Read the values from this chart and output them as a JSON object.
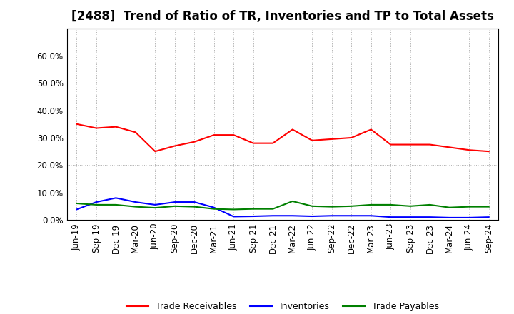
{
  "title": "[2488]  Trend of Ratio of TR, Inventories and TP to Total Assets",
  "x_labels": [
    "Jun-19",
    "Sep-19",
    "Dec-19",
    "Mar-20",
    "Jun-20",
    "Sep-20",
    "Dec-20",
    "Mar-21",
    "Jun-21",
    "Sep-21",
    "Dec-21",
    "Mar-22",
    "Jun-22",
    "Sep-22",
    "Dec-22",
    "Mar-23",
    "Jun-23",
    "Sep-23",
    "Dec-23",
    "Mar-24",
    "Jun-24",
    "Sep-24"
  ],
  "trade_receivables": [
    0.35,
    0.335,
    0.34,
    0.32,
    0.25,
    0.27,
    0.285,
    0.31,
    0.31,
    0.28,
    0.28,
    0.33,
    0.29,
    0.295,
    0.3,
    0.33,
    0.275,
    0.275,
    0.275,
    0.265,
    0.255,
    0.25
  ],
  "inventories": [
    0.038,
    0.065,
    0.08,
    0.065,
    0.055,
    0.065,
    0.065,
    0.045,
    0.012,
    0.013,
    0.015,
    0.015,
    0.013,
    0.015,
    0.015,
    0.015,
    0.01,
    0.01,
    0.01,
    0.008,
    0.008,
    0.01
  ],
  "trade_payables": [
    0.06,
    0.055,
    0.055,
    0.048,
    0.044,
    0.05,
    0.048,
    0.04,
    0.038,
    0.04,
    0.04,
    0.068,
    0.05,
    0.048,
    0.05,
    0.055,
    0.055,
    0.05,
    0.055,
    0.045,
    0.048,
    0.048
  ],
  "tr_color": "#FF0000",
  "inv_color": "#0000FF",
  "tp_color": "#008000",
  "ylim": [
    0.0,
    0.7
  ],
  "yticks": [
    0.0,
    0.1,
    0.2,
    0.3,
    0.4,
    0.5,
    0.6
  ],
  "background_color": "#FFFFFF",
  "grid_color": "#999999",
  "legend_labels": [
    "Trade Receivables",
    "Inventories",
    "Trade Payables"
  ],
  "title_fontsize": 12,
  "tick_fontsize": 8.5,
  "legend_fontsize": 9
}
